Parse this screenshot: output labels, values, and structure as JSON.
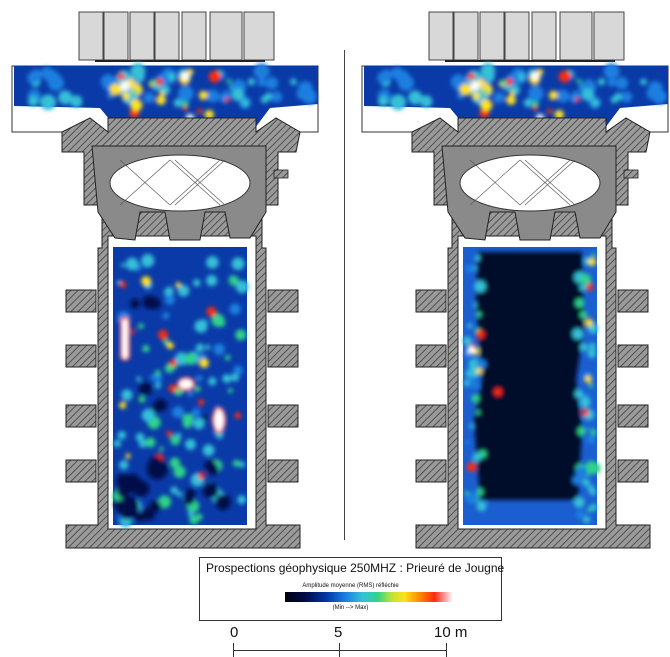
{
  "legend": {
    "title": "Prospections géophysique 250MHZ : Prieuré de Jougne",
    "subtitle": "Amplitude moyenne (RMS) réfléchie",
    "range": "(Min --> Max)"
  },
  "scale_bar": {
    "labels": [
      "0",
      "5",
      "10 m"
    ]
  },
  "panels": [
    {
      "name": "left-plan",
      "profile": "high-amplitude-scattered"
    },
    {
      "name": "right-plan",
      "profile": "low-amplitude-central"
    }
  ],
  "colors": {
    "wall_hatch": "#505050",
    "wall_fill": "#8a8a8a",
    "low": "#000a4a",
    "mid": "#2fd38a",
    "high": "#ff2a10"
  }
}
